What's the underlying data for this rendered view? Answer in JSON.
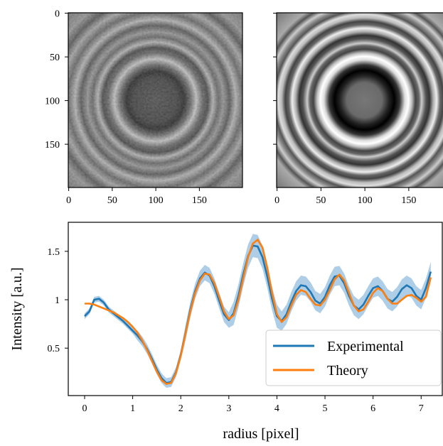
{
  "chart_data": [
    {
      "type": "image",
      "xlim": [
        -0.5,
        199.5
      ],
      "ylim": [
        199.5,
        -0.5
      ],
      "xticks": [
        0,
        50,
        100,
        150
      ],
      "yticks": [
        0,
        50,
        100,
        150
      ],
      "ytick_labels": true,
      "colormap": "gray"
    },
    {
      "type": "image",
      "xlim": [
        -0.5,
        199.5
      ],
      "ylim": [
        199.5,
        -0.5
      ],
      "xticks": [
        0,
        50,
        100,
        150
      ],
      "yticks": [
        0,
        50,
        100,
        150
      ],
      "ytick_labels": false,
      "colormap": "gray"
    },
    {
      "type": "line",
      "xlabel": "radius [pixel]",
      "ylabel": "Intensity [a.u.]",
      "xlim": [
        -0.34,
        7.44
      ],
      "ylim": [
        0.01,
        1.8
      ],
      "xticks": [
        0,
        1,
        2,
        3,
        4,
        5,
        6,
        7
      ],
      "yticks": [
        0.5,
        1.0,
        1.5
      ],
      "legend": "lower right",
      "x": [
        0,
        0.1,
        0.2,
        0.3,
        0.4,
        0.5,
        0.6,
        0.7,
        0.8,
        0.9,
        1.0,
        1.1,
        1.2,
        1.3,
        1.4,
        1.5,
        1.6,
        1.7,
        1.8,
        1.9,
        2.0,
        2.1,
        2.2,
        2.3,
        2.4,
        2.5,
        2.6,
        2.7,
        2.8,
        2.9,
        3.0,
        3.1,
        3.2,
        3.3,
        3.4,
        3.5,
        3.6,
        3.7,
        3.8,
        3.9,
        4.0,
        4.1,
        4.2,
        4.3,
        4.4,
        4.5,
        4.6,
        4.7,
        4.8,
        4.9,
        5.0,
        5.1,
        5.2,
        5.3,
        5.4,
        5.5,
        5.6,
        5.7,
        5.8,
        5.9,
        6.0,
        6.1,
        6.2,
        6.3,
        6.4,
        6.5,
        6.6,
        6.7,
        6.8,
        6.9,
        7.0,
        7.1,
        7.2
      ],
      "series": [
        {
          "name": "Experimental",
          "color": "#1f77b4",
          "band_color": "#aecde6",
          "values": [
            0.83,
            0.88,
            1.0,
            1.01,
            0.97,
            0.9,
            0.86,
            0.82,
            0.78,
            0.73,
            0.68,
            0.63,
            0.57,
            0.49,
            0.39,
            0.28,
            0.19,
            0.14,
            0.15,
            0.25,
            0.43,
            0.66,
            0.9,
            1.09,
            1.22,
            1.28,
            1.25,
            1.14,
            0.99,
            0.85,
            0.79,
            0.86,
            1.04,
            1.26,
            1.45,
            1.56,
            1.55,
            1.44,
            1.24,
            1.01,
            0.83,
            0.78,
            0.85,
            0.98,
            1.09,
            1.15,
            1.14,
            1.08,
            0.99,
            0.96,
            1.03,
            1.15,
            1.24,
            1.25,
            1.17,
            1.04,
            0.94,
            0.9,
            0.95,
            1.04,
            1.12,
            1.14,
            1.09,
            1.01,
            0.98,
            1.03,
            1.11,
            1.15,
            1.12,
            1.04,
            1.0,
            1.12,
            1.29
          ],
          "errors": [
            0.03,
            0.03,
            0.03,
            0.03,
            0.03,
            0.03,
            0.03,
            0.03,
            0.03,
            0.03,
            0.03,
            0.05,
            0.05,
            0.05,
            0.05,
            0.05,
            0.05,
            0.05,
            0.05,
            0.05,
            0.05,
            0.08,
            0.08,
            0.08,
            0.08,
            0.08,
            0.08,
            0.08,
            0.08,
            0.08,
            0.08,
            0.12,
            0.12,
            0.12,
            0.12,
            0.12,
            0.12,
            0.12,
            0.12,
            0.12,
            0.12,
            0.1,
            0.1,
            0.1,
            0.1,
            0.1,
            0.1,
            0.1,
            0.1,
            0.1,
            0.1,
            0.1,
            0.1,
            0.1,
            0.1,
            0.1,
            0.1,
            0.1,
            0.1,
            0.1,
            0.1,
            0.1,
            0.1,
            0.1,
            0.1,
            0.1,
            0.1,
            0.1,
            0.1,
            0.1,
            0.1,
            0.1,
            0.1
          ]
        },
        {
          "name": "Theory",
          "color": "#ff7f0e",
          "values": [
            0.96,
            0.96,
            0.95,
            0.93,
            0.91,
            0.89,
            0.87,
            0.84,
            0.81,
            0.77,
            0.72,
            0.66,
            0.58,
            0.48,
            0.37,
            0.26,
            0.17,
            0.13,
            0.14,
            0.24,
            0.42,
            0.65,
            0.88,
            1.07,
            1.2,
            1.27,
            1.26,
            1.17,
            1.03,
            0.88,
            0.8,
            0.84,
            1.0,
            1.22,
            1.44,
            1.58,
            1.62,
            1.54,
            1.33,
            1.07,
            0.85,
            0.77,
            0.82,
            0.94,
            1.05,
            1.1,
            1.08,
            1.01,
            0.95,
            0.94,
            1.0,
            1.1,
            1.21,
            1.26,
            1.2,
            1.07,
            0.94,
            0.88,
            0.9,
            0.98,
            1.07,
            1.12,
            1.09,
            1.01,
            0.96,
            0.96,
            1.0,
            1.04,
            1.05,
            1.02,
            0.98,
            1.03,
            1.23
          ]
        }
      ]
    }
  ]
}
